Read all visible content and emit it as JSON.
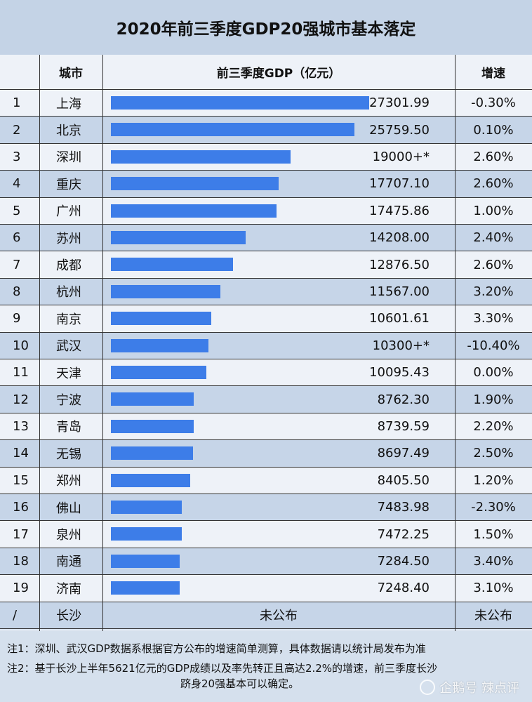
{
  "title": "2020年前三季度GDP20强城市基本落定",
  "headers": {
    "rank": "",
    "city": "城市",
    "gdp": "前三季度GDP（亿元）",
    "rate": "增速"
  },
  "bar_color": "#3d7de8",
  "chart_data": {
    "type": "bar",
    "title": "2020年前三季度GDP20强城市基本落定",
    "ylabel": "前三季度GDP（亿元）",
    "categories": [
      "上海",
      "北京",
      "深圳",
      "重庆",
      "广州",
      "苏州",
      "成都",
      "杭州",
      "南京",
      "武汉",
      "天津",
      "宁波",
      "青岛",
      "无锡",
      "郑州",
      "佛山",
      "泉州",
      "南通",
      "济南"
    ],
    "values": [
      27301.99,
      25759.5,
      19000,
      17707.1,
      17475.86,
      14208.0,
      12876.5,
      11567.0,
      10601.61,
      10300,
      10095.43,
      8762.3,
      8739.59,
      8697.49,
      8405.5,
      7483.98,
      7472.25,
      7284.5,
      7248.4
    ],
    "value_labels": [
      "27301.99",
      "25759.50",
      "19000+*",
      "17707.10",
      "17475.86",
      "14208.00",
      "12876.50",
      "11567.00",
      "10601.61",
      "10300+*",
      "10095.43",
      "8762.30",
      "8739.59",
      "8697.49",
      "8405.50",
      "7483.98",
      "7472.25",
      "7284.50",
      "7248.40"
    ],
    "ranks": [
      "1",
      "2",
      "3",
      "4",
      "5",
      "6",
      "7",
      "8",
      "9",
      "10",
      "11",
      "12",
      "13",
      "14",
      "15",
      "16",
      "17",
      "18",
      "19"
    ],
    "growth": [
      "-0.30%",
      "0.10%",
      "2.60%",
      "2.60%",
      "1.00%",
      "2.40%",
      "2.60%",
      "3.20%",
      "3.30%",
      "-10.40%",
      "0.00%",
      "1.90%",
      "2.20%",
      "2.50%",
      "1.20%",
      "-2.30%",
      "1.50%",
      "3.40%",
      "3.10%"
    ],
    "xlim": [
      0,
      27301.99
    ]
  },
  "extra_row": {
    "rank": "/",
    "city": "长沙",
    "gdp": "未公布",
    "rate": "未公布"
  },
  "notes": [
    "注1：深圳、武汉GDP数据系根据官方公布的增速简单测算，具体数据请以统计局发布为准",
    "注2：基于长沙上半年5621亿元的GDP成绩以及率先转正且高达2.2%的增速，前三季度长沙",
    "跻身20强基本可以确定。"
  ],
  "watermark": "企鹅号 辣点评"
}
